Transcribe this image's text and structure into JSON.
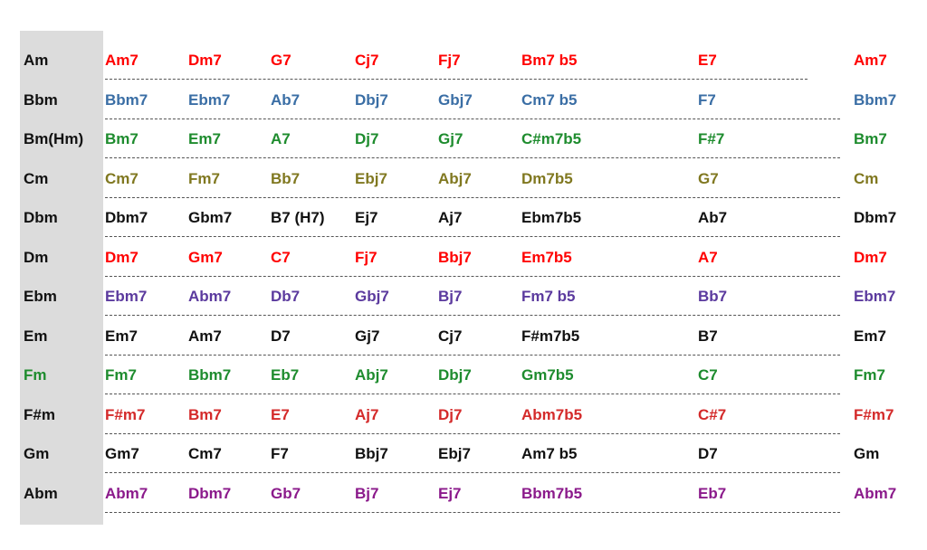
{
  "colors": {
    "red": "#ff0000",
    "blue": "#3a6ea5",
    "green": "#1e8c2e",
    "olive": "#807820",
    "black": "#111111",
    "purple": "#5b3a9e",
    "darkred": "#d42a2a",
    "magenta": "#8b1a8b",
    "key_bg": "#dcdcdc"
  },
  "rows": [
    {
      "key": "Am",
      "key_color": "black",
      "color": "red",
      "chords": [
        "Am7",
        "Dm7",
        "G7",
        "Cj7",
        "Fj7",
        "Bm7 b5",
        "E7"
      ],
      "end": "Am7"
    },
    {
      "key": "Bbm",
      "key_color": "black",
      "color": "blue",
      "chords": [
        "Bbm7",
        "Ebm7",
        "Ab7",
        "Dbj7",
        "Gbj7",
        "Cm7 b5",
        "F7"
      ],
      "end": "Bbm7"
    },
    {
      "key": "Bm(Hm)",
      "key_color": "black",
      "color": "green",
      "chords": [
        "Bm7",
        "Em7",
        "A7",
        "Dj7",
        "Gj7",
        "C#m7b5",
        "F#7"
      ],
      "end": "Bm7"
    },
    {
      "key": "Cm",
      "key_color": "black",
      "color": "olive",
      "chords": [
        "Cm7",
        "Fm7",
        "Bb7",
        "Ebj7",
        "Abj7",
        "Dm7b5",
        "G7"
      ],
      "end": "Cm"
    },
    {
      "key": "Dbm",
      "key_color": "black",
      "color": "black",
      "chords": [
        "Dbm7",
        "Gbm7",
        "B7 (H7)",
        "Ej7",
        "Aj7",
        "Ebm7b5",
        "Ab7"
      ],
      "end": "Dbm7"
    },
    {
      "key": "Dm",
      "key_color": "black",
      "color": "red",
      "chords": [
        "Dm7",
        "Gm7",
        "C7",
        "Fj7",
        "Bbj7",
        "Em7b5",
        "A7"
      ],
      "end": "Dm7"
    },
    {
      "key": "Ebm",
      "key_color": "black",
      "color": "purple",
      "chords": [
        "Ebm7",
        "Abm7",
        "Db7",
        "Gbj7",
        "Bj7",
        "Fm7 b5",
        "Bb7"
      ],
      "end": "Ebm7"
    },
    {
      "key": "Em",
      "key_color": "black",
      "color": "black",
      "chords": [
        "Em7",
        "Am7",
        "D7",
        "Gj7",
        "Cj7",
        "F#m7b5",
        "B7"
      ],
      "end": "Em7"
    },
    {
      "key": "Fm",
      "key_color": "green",
      "color": "green",
      "chords": [
        "Fm7",
        "Bbm7",
        "Eb7",
        "Abj7",
        "Dbj7",
        "Gm7b5",
        "C7"
      ],
      "end": "Fm7"
    },
    {
      "key": "F#m",
      "key_color": "black",
      "color": "darkred",
      "chords": [
        "F#m7",
        "Bm7",
        "E7",
        "Aj7",
        "Dj7",
        "Abm7b5",
        "C#7"
      ],
      "end": "F#m7"
    },
    {
      "key": "Gm",
      "key_color": "black",
      "color": "black",
      "chords": [
        "Gm7",
        "Cm7",
        "F7",
        "Bbj7",
        "Ebj7",
        "Am7 b5",
        "D7"
      ],
      "end": "Gm"
    },
    {
      "key": "Abm",
      "key_color": "black",
      "color": "magenta",
      "chords": [
        "Abm7",
        "Dbm7",
        "Gb7",
        "Bj7",
        "Ej7",
        "Bbm7b5",
        "Eb7"
      ],
      "end": "Abm7"
    }
  ]
}
